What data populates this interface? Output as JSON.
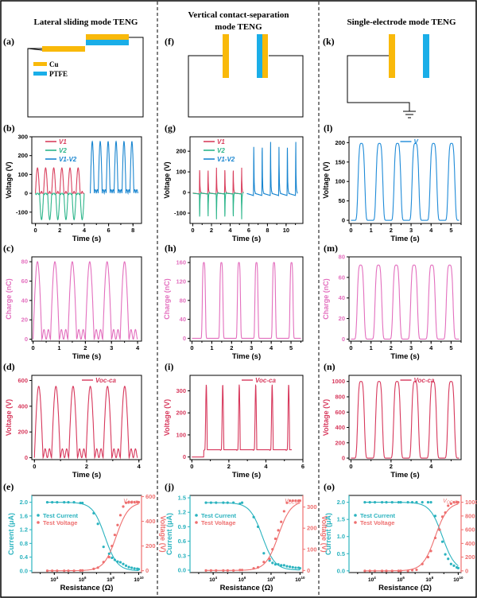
{
  "colors": {
    "cu": "#F9B90A",
    "ptfe": "#1AAEE8",
    "v1": "#D9405E",
    "v2": "#2CB58A",
    "vdiff": "#1A86D0",
    "v_single": "#1F8BD8",
    "charge": "#E36FBE",
    "voc": "#D7385C",
    "current": "#2BB3BF",
    "voltage_r": "#EE6F6F",
    "axis": "#000000",
    "divider": "#000000"
  },
  "columns": [
    {
      "title": "Lateral sliding mode TENG"
    },
    {
      "title": "Vertical contact-separation mode TENG",
      "title_lines": [
        "Vertical contact-separation",
        "mode TENG"
      ]
    },
    {
      "title": "Single-electrode mode TENG"
    }
  ],
  "diagrams": [
    {
      "panel": "(a)",
      "type": "lateral",
      "legend": [
        {
          "label": "Cu",
          "material": "cu"
        },
        {
          "label": "PTFE",
          "material": "ptfe"
        }
      ]
    },
    {
      "panel": "(f)",
      "type": "vertical"
    },
    {
      "panel": "(k)",
      "type": "single-electrode",
      "ground": true
    }
  ],
  "chart_data": [
    {
      "panel": "(b)",
      "type": "line",
      "xlabel": "Time (s)",
      "ylabel": "Voltage (V)",
      "xlim": [
        -0.3,
        8.7
      ],
      "ylim": [
        -160,
        300
      ],
      "xticks": [
        0,
        2,
        4,
        6,
        8
      ],
      "yticks": [
        -100,
        0,
        100,
        200,
        300
      ],
      "legend": [
        "V1",
        "V2",
        "V1-V2"
      ],
      "legend_placement": "top-left",
      "series": [
        {
          "name": "V1",
          "color_key": "v1",
          "shape": "sine-half",
          "x_range": [
            0,
            4
          ],
          "cycles": 6,
          "peak": 135,
          "base": 0
        },
        {
          "name": "V2",
          "color_key": "v2",
          "shape": "sine-half-neg",
          "x_range": [
            0,
            4
          ],
          "cycles": 6,
          "peak": -140,
          "base": 0
        },
        {
          "name": "V1-V2",
          "color_key": "vdiff",
          "shape": "sine-full",
          "x_range": [
            4.5,
            8.4
          ],
          "cycles": 6,
          "peak": 275,
          "base": 0
        }
      ]
    },
    {
      "panel": "(g)",
      "type": "line",
      "xlabel": "Time (s)",
      "ylabel": "Voltage (V)",
      "xlim": [
        -0.3,
        11.8
      ],
      "ylim": [
        -150,
        270
      ],
      "xticks": [
        0,
        2,
        4,
        6,
        8,
        10
      ],
      "yticks": [
        -100,
        0,
        100,
        200
      ],
      "legend": [
        "V1",
        "V2",
        "V1-V2"
      ],
      "legend_placement": "top-left",
      "series": [
        {
          "name": "V1",
          "color_key": "v1",
          "shape": "spike",
          "x_range": [
            0,
            5.4
          ],
          "cycles": 6,
          "peak": 120,
          "base": 0
        },
        {
          "name": "V2",
          "color_key": "v2",
          "shape": "spike-neg",
          "x_range": [
            0,
            5.4
          ],
          "cycles": 6,
          "peak": -130,
          "base": 0
        },
        {
          "name": "V1-V2",
          "color_key": "vdiff",
          "shape": "spike",
          "x_range": [
            5.8,
            11.2
          ],
          "cycles": 6,
          "peak": 245,
          "base": 0
        }
      ]
    },
    {
      "panel": "(l)",
      "type": "line",
      "xlabel": "Time (s)",
      "ylabel": "Voltage (V)",
      "xlim": [
        -0.1,
        5.5
      ],
      "ylim": [
        -8,
        215
      ],
      "xticks": [
        0,
        1,
        2,
        3,
        4,
        5
      ],
      "yticks": [
        0,
        50,
        100,
        150,
        200
      ],
      "legend": [
        "V"
      ],
      "legend_placement": "top-center",
      "series": [
        {
          "name": "V",
          "color_key": "v_single",
          "shape": "pulse",
          "x_range": [
            0,
            5.4
          ],
          "cycles": 6,
          "peak": 198,
          "base": 0,
          "first_peak": 0.52,
          "period": 0.9
        }
      ]
    },
    {
      "panel": "(c)",
      "type": "line",
      "xlabel": "Time (s)",
      "ylabel": "Charge (nC)",
      "xlim": [
        -0.05,
        4.15
      ],
      "ylim": [
        -2,
        85
      ],
      "xticks": [
        0,
        1,
        2,
        3,
        4
      ],
      "yticks": [
        0,
        20,
        40,
        60,
        80
      ],
      "series": [
        {
          "name": "Charge",
          "color_key": "charge",
          "shape": "sine-dip",
          "x_range": [
            0,
            4
          ],
          "cycles": 6,
          "peak": 80,
          "base": 0,
          "dip": 10
        }
      ]
    },
    {
      "panel": "(h)",
      "type": "line",
      "xlabel": "Time (s)",
      "ylabel": "Charge (nC)",
      "xlim": [
        -0.1,
        5.6
      ],
      "ylim": [
        -6,
        172
      ],
      "xticks": [
        0,
        1,
        2,
        3,
        4,
        5
      ],
      "yticks": [
        0,
        40,
        80,
        120,
        160
      ],
      "series": [
        {
          "name": "Charge",
          "color_key": "charge",
          "shape": "narrow-pulse",
          "x_range": [
            0,
            5.5
          ],
          "cycles": 6,
          "peak": 160,
          "base": 0,
          "first_peak": 0.6,
          "period": 0.885
        }
      ]
    },
    {
      "panel": "(m)",
      "type": "line",
      "xlabel": "Time (s)",
      "ylabel": "Charge (nC)",
      "xlim": [
        -0.1,
        5.5
      ],
      "ylim": [
        -2,
        80
      ],
      "xticks": [
        0,
        1,
        2,
        3,
        4,
        5
      ],
      "yticks": [
        0,
        20,
        40,
        60,
        80
      ],
      "series": [
        {
          "name": "Charge",
          "color_key": "charge",
          "shape": "pulse",
          "x_range": [
            0,
            5.4
          ],
          "cycles": 6,
          "peak": 72,
          "base": 0,
          "first_peak": 0.48,
          "period": 0.89
        }
      ]
    },
    {
      "panel": "(d)",
      "type": "line",
      "xlabel": "Time (s)",
      "ylabel": "Voltage (V)",
      "xlim": [
        -0.1,
        4.1
      ],
      "ylim": [
        -15,
        640
      ],
      "xticks": [
        0,
        2,
        4
      ],
      "yticks": [
        0,
        200,
        400,
        600
      ],
      "legend": [
        "Voc-ca"
      ],
      "legend_placement": "top-center",
      "series": [
        {
          "name": "Voc-ca",
          "color_key": "voc",
          "shape": "sine-dip",
          "x_range": [
            0,
            3.95
          ],
          "cycles": 6,
          "peak": 555,
          "base": 0,
          "dip": 30
        }
      ]
    },
    {
      "panel": "(i)",
      "type": "line",
      "xlabel": "Time (s)",
      "ylabel": "Voltage (V)",
      "xlim": [
        -0.1,
        6
      ],
      "ylim": [
        -12,
        370
      ],
      "xticks": [
        0,
        2,
        4,
        6
      ],
      "yticks": [
        0,
        100,
        200,
        300
      ],
      "legend": [
        "Voc-ca"
      ],
      "legend_placement": "top-center",
      "series": [
        {
          "name": "Voc-ca",
          "color_key": "voc",
          "shape": "ramp-spike",
          "x_range": [
            0,
            5.4
          ],
          "cycles": 6,
          "peak": 328,
          "base": 0,
          "first_peak": 0.78,
          "period": 0.89
        }
      ]
    },
    {
      "panel": "(n)",
      "type": "line",
      "xlabel": "Time (s)",
      "ylabel": "Voltage (V)",
      "xlim": [
        -0.1,
        5.5
      ],
      "ylim": [
        -20,
        1080
      ],
      "xticks": [
        0,
        2,
        4
      ],
      "yticks": [
        0,
        200,
        400,
        600,
        800,
        1000
      ],
      "legend": [
        "Voc-ca"
      ],
      "legend_placement": "top-center",
      "series": [
        {
          "name": "Voc-ca",
          "color_key": "voc",
          "shape": "pulse",
          "x_range": [
            0,
            5.4
          ],
          "cycles": 6,
          "peak": 1000,
          "base": 0,
          "first_peak": 0.5,
          "period": 0.9
        }
      ]
    },
    {
      "panel": "(e)",
      "type": "scatter",
      "xlabel": "Resistance (Ω)",
      "ylabel": "Current (μA)",
      "ylabel_right": "Voltage (V)",
      "xscale": "log",
      "xlim_log": [
        2.4,
        10.2
      ],
      "ylim": [
        -0.05,
        2.2
      ],
      "ylim_right": [
        -15,
        610
      ],
      "xticks_log": [
        4,
        6,
        8,
        10
      ],
      "yticks": [
        0.0,
        0.4,
        0.8,
        1.2,
        1.6,
        2.0
      ],
      "yticks_right": [
        0,
        200,
        400,
        600
      ],
      "yticks_fmt": 1,
      "legend": [
        "Test Current",
        "Test Voltage"
      ],
      "legend_placement": "top-left",
      "annotation": "VOC-IR",
      "current": {
        "log_r": [
          3.5,
          3.85,
          4.2,
          4.7,
          5.0,
          5.4,
          5.85,
          6.0,
          6.8,
          7.1,
          7.5,
          7.9,
          8.1,
          8.3,
          8.5,
          8.7,
          8.9,
          9.1,
          9.3,
          9.5,
          9.7,
          9.9,
          10.0
        ],
        "values": [
          2.0,
          2.0,
          2.0,
          2.0,
          2.0,
          2.0,
          1.98,
          1.98,
          1.68,
          1.37,
          0.7,
          0.5,
          0.38,
          0.32,
          0.27,
          0.25,
          0.2,
          0.15,
          0.11,
          0.09,
          0.07,
          0.06,
          0.05
        ],
        "max": 2.0,
        "mid_log": 7.6
      },
      "voltage": {
        "log_r": [
          3.5,
          3.85,
          4.2,
          4.7,
          5.0,
          5.4,
          5.85,
          6.0,
          6.8,
          7.1,
          7.5,
          7.9,
          8.1,
          8.3,
          8.5,
          8.7,
          8.9,
          9.1,
          9.3,
          9.5,
          9.7,
          9.9,
          10.0
        ],
        "values": [
          0,
          0,
          0,
          0,
          0,
          0,
          2,
          2,
          15,
          25,
          70,
          110,
          200,
          290,
          370,
          450,
          520,
          550,
          555,
          555,
          555,
          555,
          555
        ],
        "max": 555,
        "mid_log": 8.4
      }
    },
    {
      "panel": "(j)",
      "type": "scatter",
      "xlabel": "Resistance (Ω)",
      "ylabel": "Current (μA)",
      "ylabel_right": "Voltage (V)",
      "xscale": "log",
      "xlim_log": [
        2.4,
        10.2
      ],
      "ylim": [
        -0.05,
        1.55
      ],
      "ylim_right": [
        -10,
        355
      ],
      "xticks_log": [
        4,
        6,
        8,
        10
      ],
      "yticks": [
        0.0,
        0.3,
        0.6,
        0.9,
        1.2,
        1.5
      ],
      "yticks_right": [
        0,
        100,
        200,
        300
      ],
      "yticks_fmt": 1,
      "legend": [
        "Test Current",
        "Test Voltage"
      ],
      "legend_placement": "top-left",
      "annotation": "VOC-IR",
      "current": {
        "log_r": [
          3.5,
          3.85,
          4.2,
          4.7,
          5.0,
          5.4,
          5.85,
          6.0,
          6.8,
          7.1,
          7.5,
          7.9,
          8.1,
          8.3,
          8.5,
          8.7,
          8.9,
          9.1,
          9.3,
          9.5,
          9.7,
          9.9,
          10.0
        ],
        "values": [
          1.4,
          1.4,
          1.4,
          1.4,
          1.4,
          1.4,
          1.38,
          1.4,
          1.1,
          0.9,
          0.35,
          0.2,
          0.15,
          0.12,
          0.12,
          0.1,
          0.1,
          0.08,
          0.07,
          0.06,
          0.05,
          0.05,
          0.04
        ],
        "max": 1.4,
        "mid_log": 7.4
      },
      "voltage": {
        "log_r": [
          3.5,
          3.85,
          4.2,
          4.7,
          5.0,
          5.4,
          5.85,
          6.0,
          6.8,
          7.1,
          7.5,
          7.9,
          8.1,
          8.3,
          8.5,
          8.7,
          8.9,
          9.1,
          9.3,
          9.5,
          9.7,
          9.9,
          10.0
        ],
        "values": [
          0,
          0,
          0,
          0,
          0,
          0,
          2,
          2,
          10,
          15,
          40,
          55,
          100,
          150,
          190,
          230,
          280,
          320,
          330,
          330,
          330,
          330,
          330
        ],
        "max": 330,
        "mid_log": 8.5
      }
    },
    {
      "panel": "(o)",
      "type": "scatter",
      "xlabel": "Resistance (Ω)",
      "ylabel": "Current (μA)",
      "ylabel_right": "Voltage (V)",
      "xscale": "log",
      "xlim_log": [
        2.4,
        10.2
      ],
      "ylim": [
        -0.05,
        2.2
      ],
      "ylim_right": [
        -25,
        1100
      ],
      "xticks_log": [
        4,
        6,
        8,
        10
      ],
      "yticks": [
        0.0,
        0.5,
        1.0,
        1.5,
        2.0
      ],
      "yticks_right": [
        0,
        200,
        400,
        600,
        800,
        1000
      ],
      "yticks_fmt": 1,
      "legend": [
        "Test Current",
        "Test Voltage"
      ],
      "legend_placement": "top-left",
      "annotation": "VOC-IR",
      "current": {
        "log_r": [
          3.5,
          3.85,
          4.2,
          4.7,
          5.0,
          5.4,
          5.85,
          6.0,
          6.5,
          6.8,
          7.1,
          7.5,
          7.9,
          8.1,
          8.4,
          8.7,
          8.9,
          9.1,
          9.3,
          9.5,
          9.7,
          9.9,
          10.0
        ],
        "values": [
          2.0,
          2.0,
          2.0,
          2.0,
          2.0,
          2.0,
          2.0,
          2.0,
          2.0,
          2.0,
          2.0,
          2.0,
          2.0,
          2.0,
          1.6,
          1.2,
          0.85,
          0.48,
          0.35,
          0.2,
          0.15,
          0.1,
          0.08
        ],
        "max": 2.0,
        "mid_log": 8.9
      },
      "voltage": {
        "log_r": [
          3.5,
          3.85,
          4.2,
          4.7,
          5.0,
          5.4,
          5.85,
          6.0,
          6.5,
          6.8,
          7.1,
          7.5,
          7.9,
          8.1,
          8.4,
          8.7,
          8.9,
          9.1,
          9.3,
          9.5,
          9.7,
          9.9,
          10.0
        ],
        "values": [
          0,
          0,
          0,
          0,
          0,
          0,
          0,
          0,
          0,
          10,
          15,
          100,
          200,
          290,
          480,
          600,
          790,
          850,
          950,
          980,
          1000,
          1000,
          1000
        ],
        "max": 1000,
        "mid_log": 8.4
      }
    }
  ]
}
